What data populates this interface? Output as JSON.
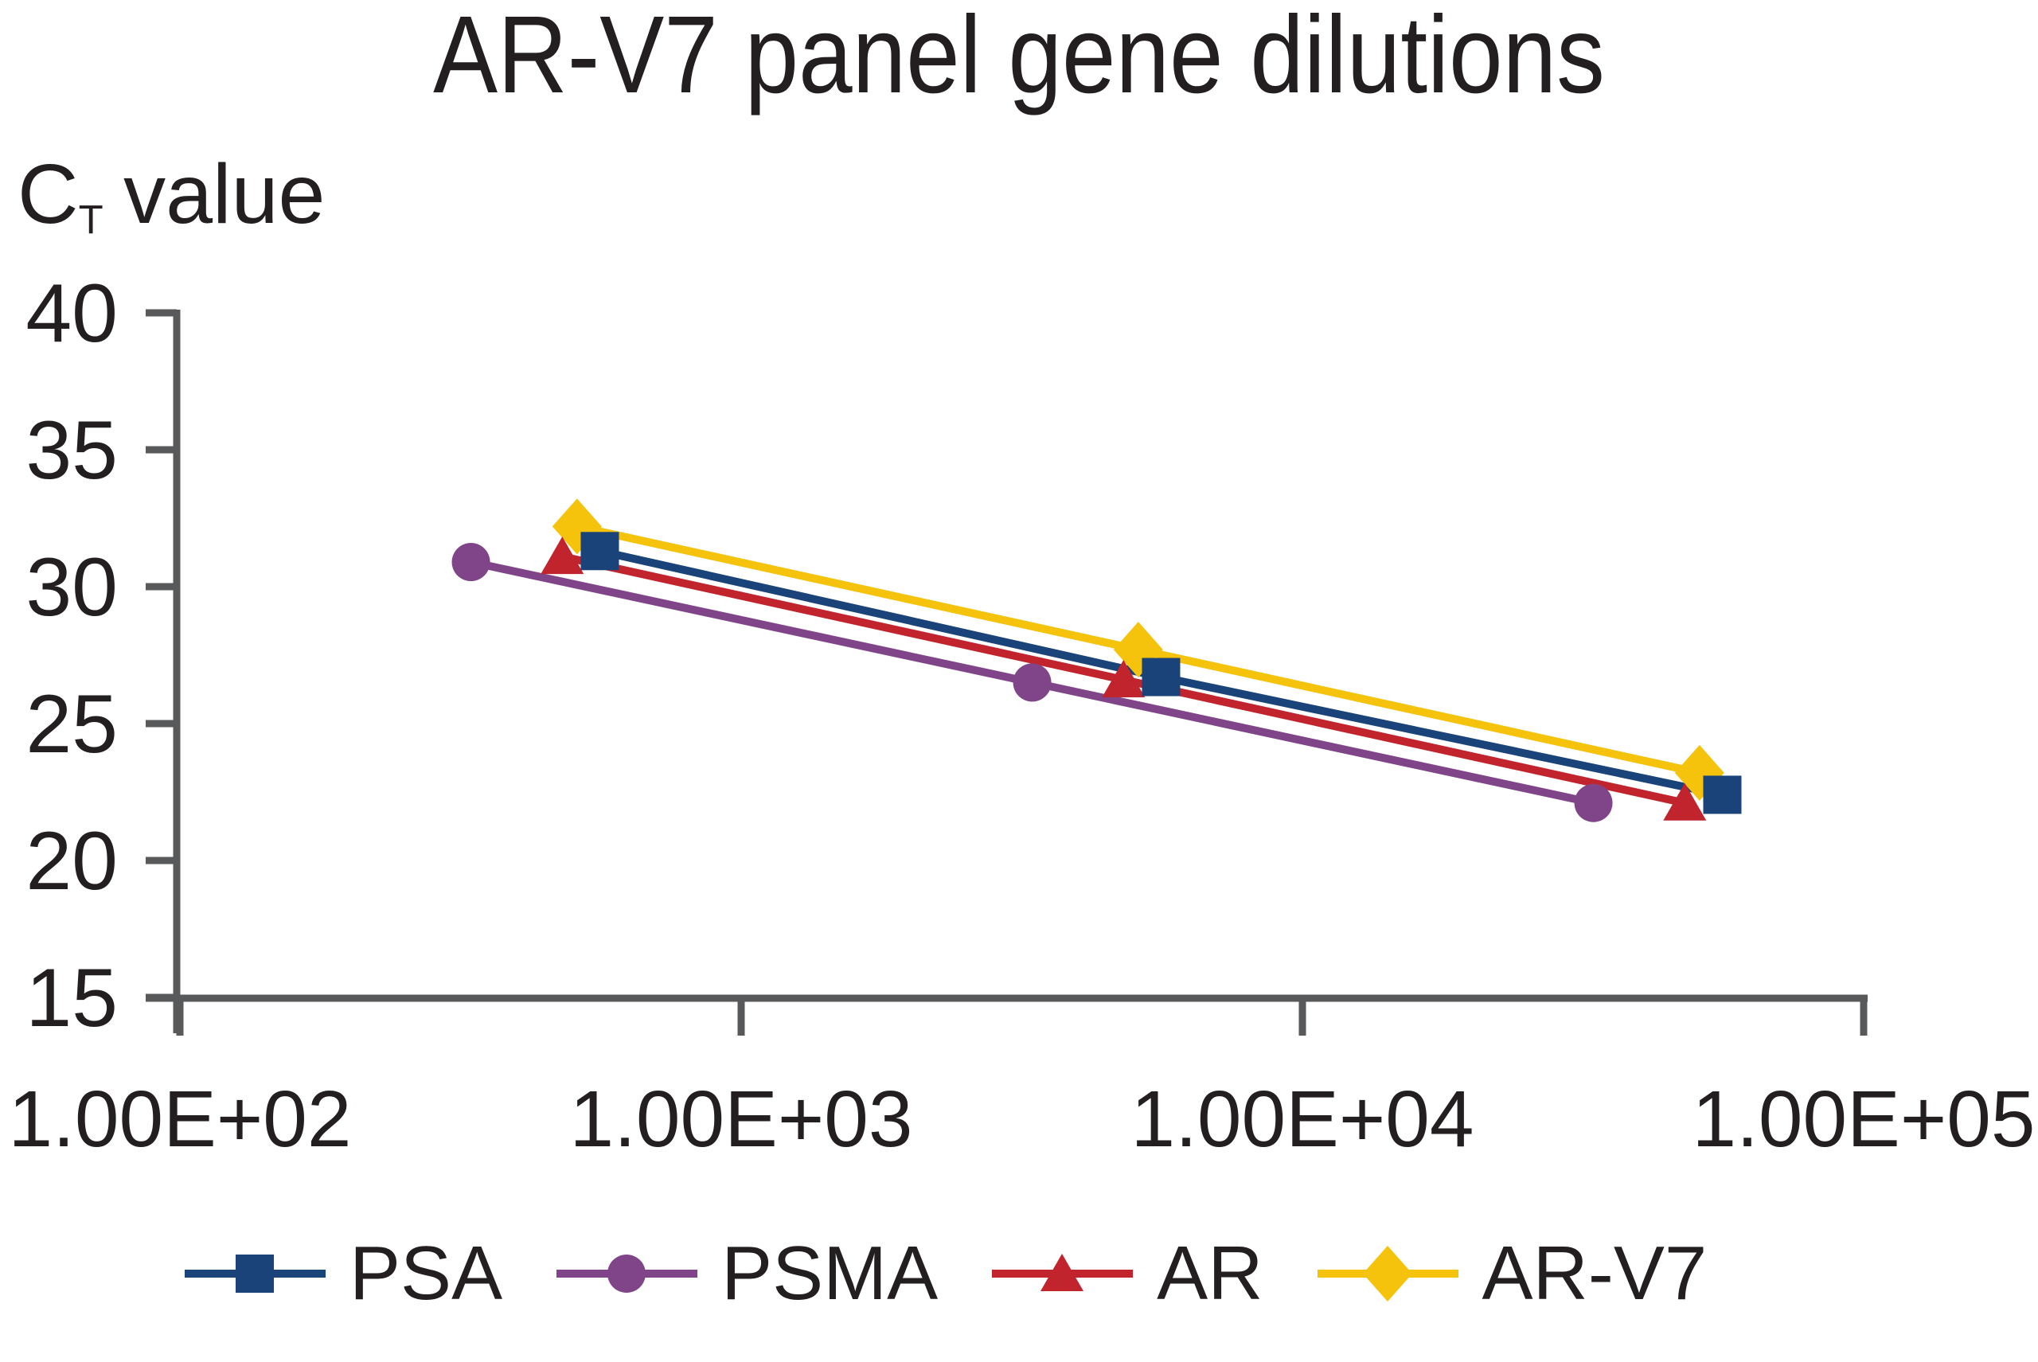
{
  "title": "AR-V7 panel gene dilutions",
  "y_axis_label": {
    "main": "C",
    "sub": "T",
    "rest": "value",
    "full": "CT value"
  },
  "axes": {
    "x": {
      "scale": "log10",
      "min": 100,
      "max": 100000,
      "tick_labels": [
        "1.00E+02",
        "1.00E+03",
        "1.00E+04",
        "1.00E+05"
      ],
      "tick_values": [
        100,
        1000,
        10000,
        100000
      ]
    },
    "y": {
      "min": 15,
      "max": 40,
      "step": 5,
      "tick_values": [
        40,
        35,
        30,
        25,
        20,
        15
      ]
    }
  },
  "chart_data": {
    "type": "line",
    "title": "AR-V7 panel gene dilutions",
    "xlabel": "",
    "ylabel": "CT value",
    "x_scale": "log10",
    "xlim": [
      100,
      100000
    ],
    "ylim": [
      15,
      40
    ],
    "grid": false,
    "legend_position": "bottom",
    "series": [
      {
        "name": "PSA",
        "marker": "square",
        "color": "#1A4379",
        "x": [
          560,
          5600,
          56000
        ],
        "y": [
          31.3,
          26.7,
          22.4
        ]
      },
      {
        "name": "PSMA",
        "marker": "circle",
        "color": "#804589",
        "x": [
          330,
          3300,
          33000
        ],
        "y": [
          30.9,
          26.5,
          22.1
        ]
      },
      {
        "name": "AR",
        "marker": "triangle",
        "color": "#C1242D",
        "x": [
          480,
          4800,
          48000
        ],
        "y": [
          31.1,
          26.6,
          22.1
        ]
      },
      {
        "name": "AR-V7",
        "marker": "diamond",
        "color": "#F5C20C",
        "x": [
          510,
          5100,
          51000
        ],
        "y": [
          32.2,
          27.7,
          23.2
        ]
      }
    ]
  },
  "colors": {
    "axis": "#58595B",
    "text": "#231F20",
    "background": "#FFFFFF"
  }
}
